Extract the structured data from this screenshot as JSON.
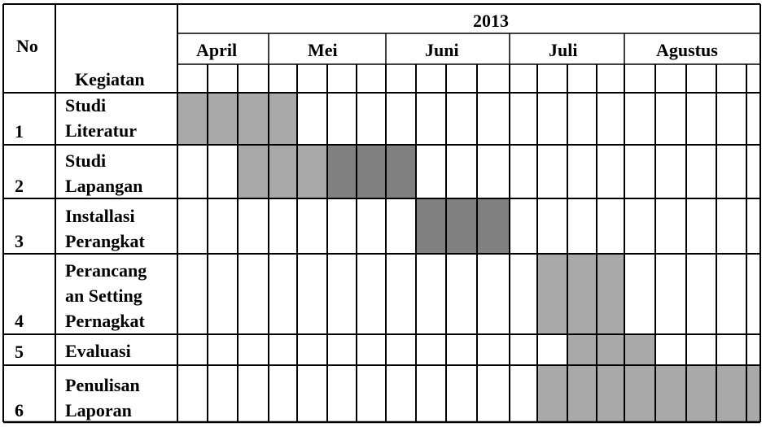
{
  "header": {
    "no_label": "No",
    "kegiatan_label": "Kegiatan",
    "year": "2013",
    "months": [
      "April",
      "Mei",
      "Juni",
      "Juli",
      "Agustus"
    ]
  },
  "colors": {
    "light": "#a9a9a9",
    "dark": "#808080",
    "grid": "#000000"
  },
  "rows": [
    {
      "no": "1",
      "lines": [
        "Studi",
        "Literatur"
      ],
      "cells": [
        "L",
        "L",
        "L",
        "L",
        "",
        "",
        "",
        "",
        "",
        "",
        "",
        "",
        "",
        "",
        "",
        "",
        "",
        "",
        "",
        ""
      ]
    },
    {
      "no": "2",
      "lines": [
        "Studi",
        "Lapangan"
      ],
      "cells": [
        "",
        "",
        "L",
        "L",
        "L",
        "D",
        "D",
        "D",
        "",
        "",
        "",
        "",
        "",
        "",
        "",
        "",
        "",
        "",
        "",
        ""
      ]
    },
    {
      "no": "3",
      "lines": [
        "Installasi",
        "Perangkat"
      ],
      "cells": [
        "",
        "",
        "",
        "",
        "",
        "",
        "",
        "",
        "D",
        "D",
        "D",
        "",
        "",
        "",
        "",
        "",
        "",
        "",
        "",
        ""
      ]
    },
    {
      "no": "4",
      "lines": [
        "Perancang",
        "an Setting",
        "Pernagkat"
      ],
      "cells": [
        "",
        "",
        "",
        "",
        "",
        "",
        "",
        "",
        "",
        "",
        "",
        "",
        "L",
        "L",
        "L",
        "",
        "",
        "",
        "",
        ""
      ]
    },
    {
      "no": "5",
      "lines": [
        "Evaluasi"
      ],
      "cells": [
        "",
        "",
        "",
        "",
        "",
        "",
        "",
        "",
        "",
        "",
        "",
        "",
        "",
        "L",
        "L",
        "L",
        "",
        "",
        "",
        ""
      ]
    },
    {
      "no": "6",
      "lines": [
        "Penulisan",
        "Laporan"
      ],
      "cells": [
        "",
        "",
        "",
        "",
        "",
        "",
        "",
        "",
        "",
        "",
        "",
        "",
        "L",
        "L",
        "L",
        "L",
        "L",
        "L",
        "L",
        "L"
      ]
    }
  ]
}
